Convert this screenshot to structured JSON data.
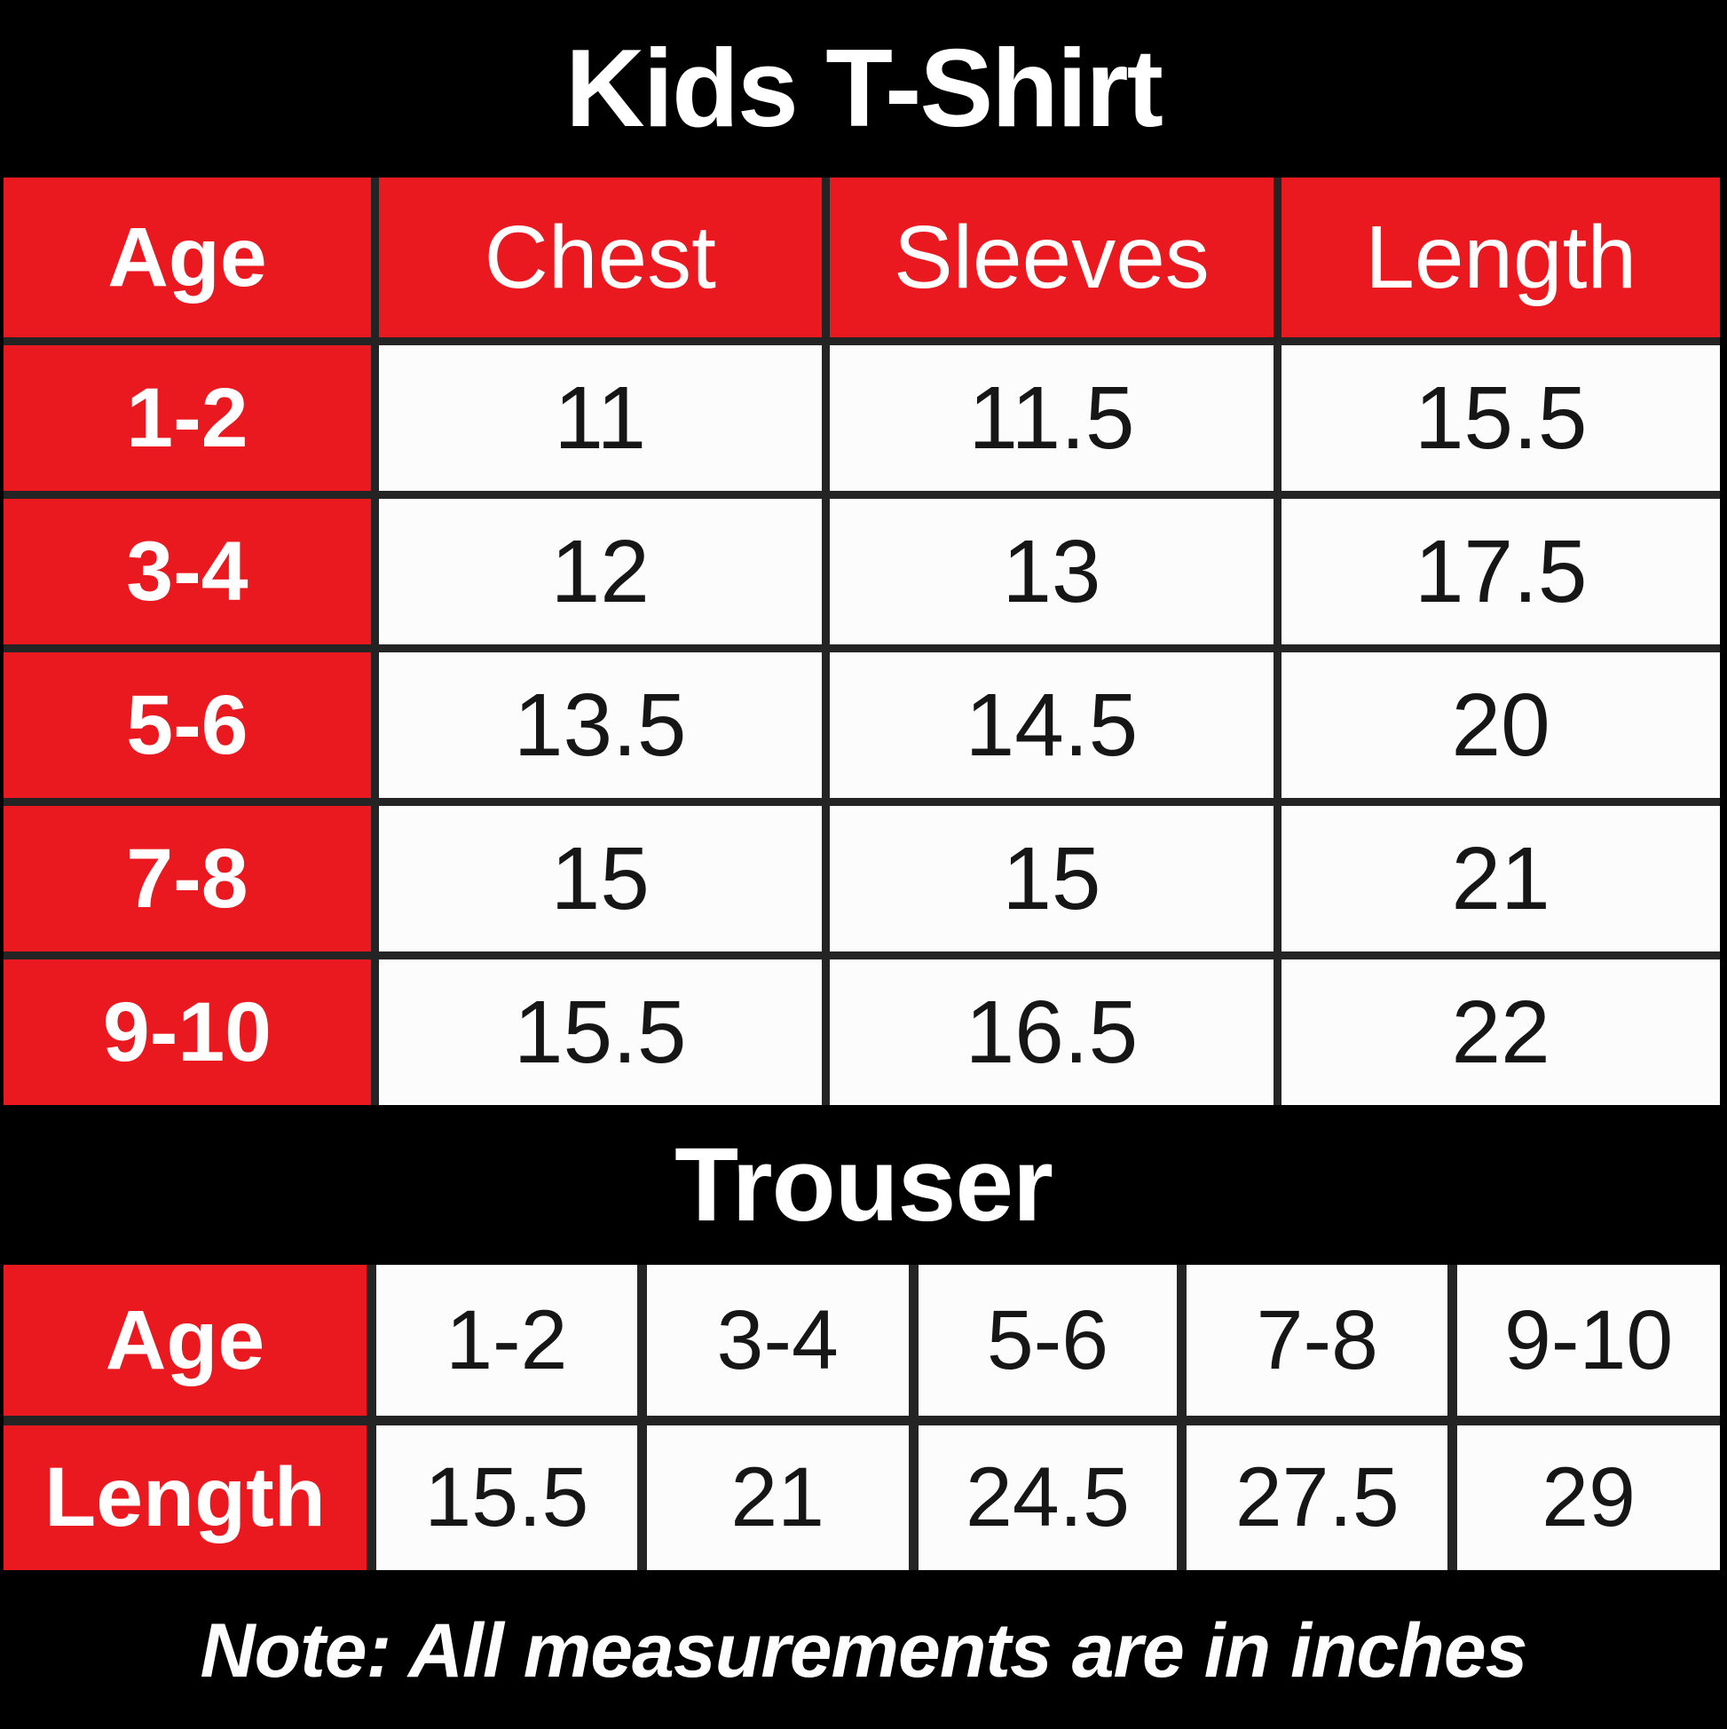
{
  "colors": {
    "accent_red": "#e9191f",
    "band_black": "#000000",
    "table_border": "#242424",
    "cell_white": "#fcfcfc",
    "text_on_red": "#ffffff",
    "text_on_white": "#161616"
  },
  "tshirt": {
    "title": "Kids T-Shirt",
    "headers": [
      "Age",
      "Chest",
      "Sleeves",
      "Length"
    ],
    "rows": [
      {
        "age": "1-2",
        "values": [
          "11",
          "11.5",
          "15.5"
        ]
      },
      {
        "age": "3-4",
        "values": [
          "12",
          "13",
          "17.5"
        ]
      },
      {
        "age": "5-6",
        "values": [
          "13.5",
          "14.5",
          "20"
        ]
      },
      {
        "age": "7-8",
        "values": [
          "15",
          "15",
          "21"
        ]
      },
      {
        "age": "9-10",
        "values": [
          "15.5",
          "16.5",
          "22"
        ]
      }
    ]
  },
  "trouser": {
    "title": "Trouser",
    "age_label": "Age",
    "length_label": "Length",
    "ages": [
      "1-2",
      "3-4",
      "5-6",
      "7-8",
      "9-10"
    ],
    "lengths": [
      "15.5",
      "21",
      "24.5",
      "27.5",
      "29"
    ]
  },
  "note": {
    "text": "Note: All measurements are in inches"
  },
  "chart_data": [
    {
      "type": "table",
      "title": "Kids T-Shirt",
      "columns": [
        "Age",
        "Chest",
        "Sleeves",
        "Length"
      ],
      "rows": [
        [
          "1-2",
          11,
          11.5,
          15.5
        ],
        [
          "3-4",
          12,
          13,
          17.5
        ],
        [
          "5-6",
          13.5,
          14.5,
          20
        ],
        [
          "7-8",
          15,
          15,
          21
        ],
        [
          "9-10",
          15.5,
          16.5,
          22
        ]
      ],
      "units": "inches"
    },
    {
      "type": "table",
      "title": "Trouser",
      "columns": [
        "Age",
        "1-2",
        "3-4",
        "5-6",
        "7-8",
        "9-10"
      ],
      "rows": [
        [
          "Length",
          15.5,
          21,
          24.5,
          27.5,
          29
        ]
      ],
      "units": "inches"
    }
  ]
}
